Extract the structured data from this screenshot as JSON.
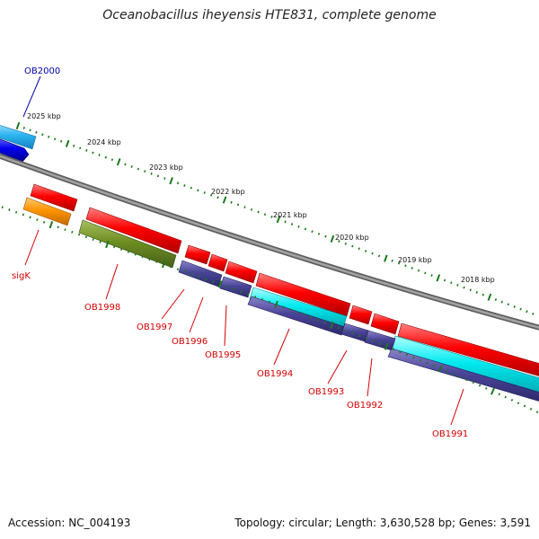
{
  "title": "Oceanobacillus iheyensis HTE831, complete genome",
  "footer": {
    "accession": "Accession: NC_004193",
    "summary": "Topology: circular; Length: 3,630,528 bp; Genes: 3,591"
  },
  "colors": {
    "backbone": "#7f7f7f",
    "tick": "#1a7a1a",
    "label_red": "#d40000",
    "label_blue": "#0000aa"
  },
  "ruler_labels": [
    "2025 kbp",
    "2024 kbp",
    "2023 kbp",
    "2022 kbp",
    "2021 kbp",
    "2020 kbp",
    "2019 kbp",
    "2018 kbp"
  ],
  "genes": [
    {
      "name": "OB2000",
      "color": "#0000aa"
    },
    {
      "name": "sigK",
      "color": "#d40000"
    },
    {
      "name": "OB1998",
      "color": "#d40000"
    },
    {
      "name": "OB1997",
      "color": "#d40000"
    },
    {
      "name": "OB1996",
      "color": "#d40000"
    },
    {
      "name": "OB1995",
      "color": "#d40000"
    },
    {
      "name": "OB1994",
      "color": "#d40000"
    },
    {
      "name": "OB1993",
      "color": "#d40000"
    },
    {
      "name": "OB1992",
      "color": "#d40000"
    },
    {
      "name": "OB1991",
      "color": "#d40000"
    }
  ]
}
